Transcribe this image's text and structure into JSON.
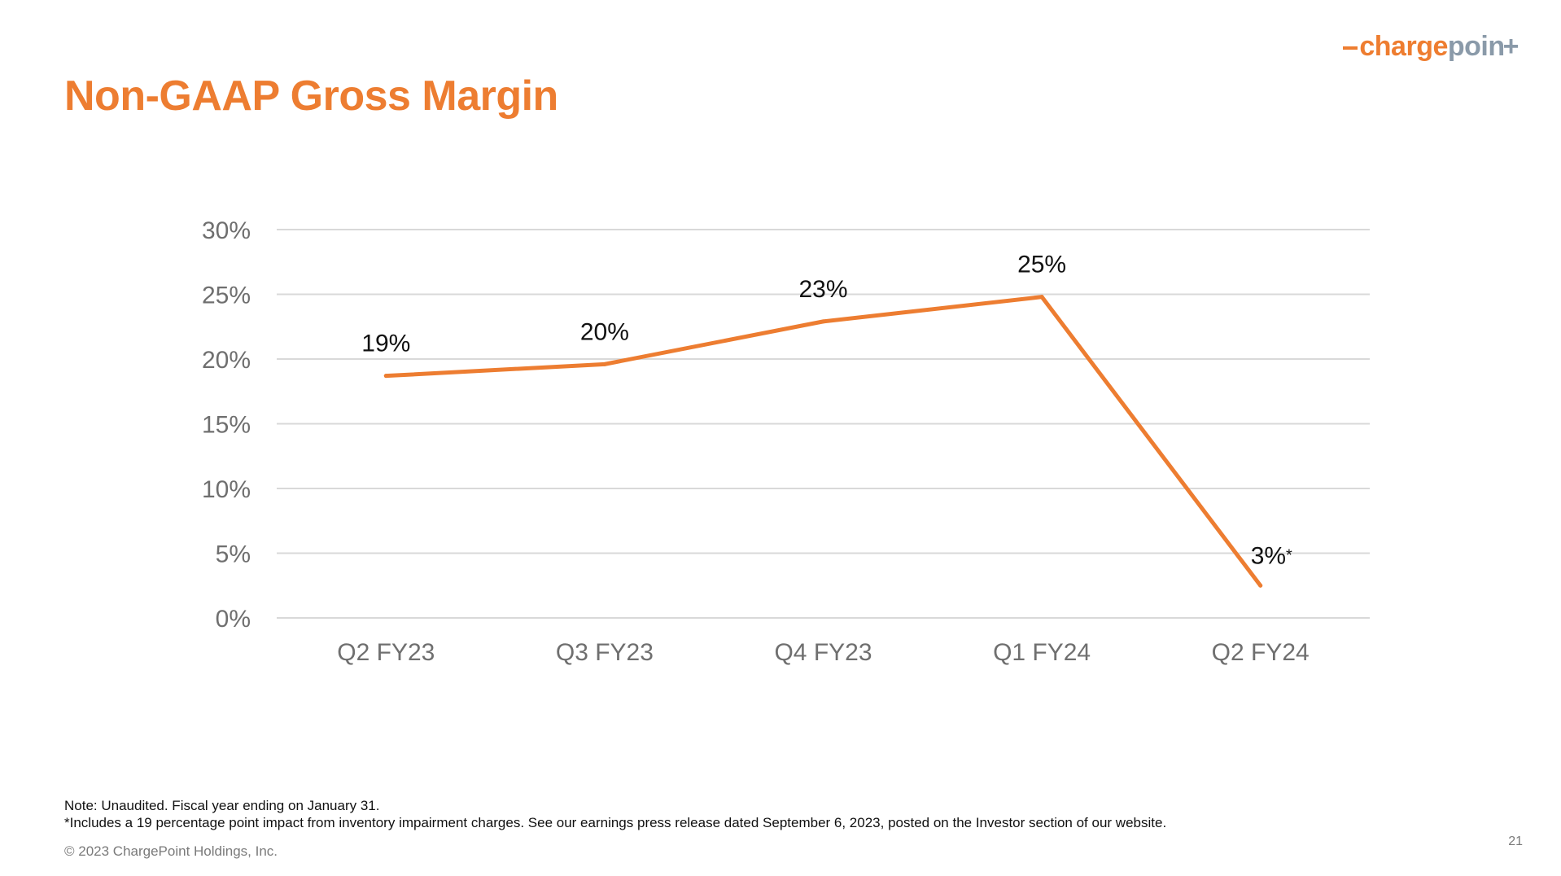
{
  "colors": {
    "accent": "#ed7d31",
    "logo_orange": "#ee7d30",
    "logo_gray": "#8a9aa9",
    "grid": "#d9d9d9",
    "axis_text": "#6f6f6f"
  },
  "logo": {
    "part1": "charge",
    "part2": "poin",
    "part3": "+"
  },
  "title": "Non-GAAP Gross Margin",
  "chart_data": {
    "type": "line",
    "categories": [
      "Q2 FY23",
      "Q3 FY23",
      "Q4 FY23",
      "Q1 FY24",
      "Q2 FY24"
    ],
    "series": [
      {
        "values": [
          18.7,
          19.6,
          22.9,
          24.8,
          2.5
        ],
        "data_labels": [
          "19%",
          "20%",
          "23%",
          "25%",
          "3%*"
        ]
      }
    ],
    "ylim": [
      0,
      30
    ],
    "yticks": [
      0,
      5,
      10,
      15,
      20,
      25,
      30
    ],
    "ytick_labels": [
      "0%",
      "5%",
      "10%",
      "15%",
      "20%",
      "25%",
      "30%"
    ],
    "grid": true,
    "legend": "none"
  },
  "notes": {
    "line1": "Note: Unaudited. Fiscal year ending on January 31.",
    "line2": "*Includes a 19 percentage point impact from inventory impairment charges. See our earnings press release dated September 6, 2023, posted on the Investor section of our website."
  },
  "copyright": "© 2023 ChargePoint Holdings, Inc.",
  "page_number": "21"
}
